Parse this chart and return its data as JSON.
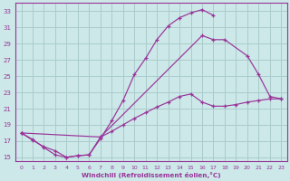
{
  "xlabel": "Windchill (Refroidissement éolien,°C)",
  "bg_color": "#cce8e8",
  "grid_color": "#aacccc",
  "line_color": "#993399",
  "xlim": [
    -0.5,
    23.5
  ],
  "ylim": [
    14.5,
    34
  ],
  "yticks": [
    15,
    17,
    19,
    21,
    23,
    25,
    27,
    29,
    31,
    33
  ],
  "xticks": [
    0,
    1,
    2,
    3,
    4,
    5,
    6,
    7,
    8,
    9,
    10,
    11,
    12,
    13,
    14,
    15,
    16,
    17,
    18,
    19,
    20,
    21,
    22,
    23
  ],
  "curve1_x": [
    0,
    1,
    2,
    3,
    4,
    5,
    6,
    7,
    8,
    9,
    10,
    11,
    12,
    13,
    14,
    15,
    16,
    17
  ],
  "curve1_y": [
    18.0,
    17.2,
    16.2,
    15.3,
    15.0,
    15.2,
    15.3,
    17.3,
    19.5,
    22.0,
    25.2,
    27.2,
    29.5,
    31.2,
    32.2,
    32.8,
    33.2,
    32.5
  ],
  "curve2_x": [
    0,
    1,
    2,
    3,
    4,
    5,
    6,
    7,
    16,
    17,
    18,
    20,
    21,
    22,
    23
  ],
  "curve2_y": [
    18.0,
    17.1,
    16.3,
    15.8,
    15.0,
    15.2,
    15.3,
    17.5,
    30.0,
    29.5,
    29.5,
    27.5,
    25.2,
    22.5,
    22.2
  ],
  "curve3_x": [
    0,
    7,
    8,
    9,
    10,
    11,
    12,
    13,
    14,
    15,
    16,
    17,
    18,
    19,
    20,
    21,
    22,
    23
  ],
  "curve3_y": [
    18.0,
    17.5,
    18.2,
    19.0,
    19.8,
    20.5,
    21.2,
    21.8,
    22.5,
    22.8,
    21.8,
    21.3,
    21.3,
    21.5,
    21.8,
    22.0,
    22.2,
    22.2
  ]
}
